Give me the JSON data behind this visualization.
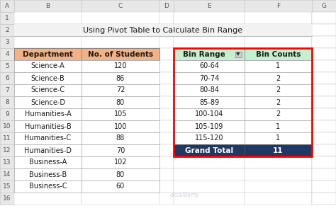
{
  "title": "Using Pivot Table to Calculate Bin Range",
  "bg_color": "#FFFFFF",
  "left_table": {
    "header": [
      "Department",
      "No. of Students"
    ],
    "header_bg": "#F4B183",
    "rows": [
      [
        "Science-A",
        "120"
      ],
      [
        "Science-B",
        "86"
      ],
      [
        "Science-C",
        "72"
      ],
      [
        "Science-D",
        "80"
      ],
      [
        "Humanities-A",
        "105"
      ],
      [
        "Humanities-B",
        "100"
      ],
      [
        "Humanities-C",
        "88"
      ],
      [
        "Humanities-D",
        "70"
      ],
      [
        "Business-A",
        "102"
      ],
      [
        "Business-B",
        "80"
      ],
      [
        "Business-C",
        "60"
      ]
    ]
  },
  "right_table": {
    "header": [
      "Bin Range",
      "Bin Counts"
    ],
    "header_bg": "#C6EFCE",
    "rows": [
      [
        "60-64",
        "1"
      ],
      [
        "70-74",
        "2"
      ],
      [
        "80-84",
        "2"
      ],
      [
        "85-89",
        "2"
      ],
      [
        "100-104",
        "2"
      ],
      [
        "105-109",
        "1"
      ],
      [
        "115-120",
        "1"
      ]
    ],
    "footer": [
      "Grand Total",
      "11"
    ],
    "footer_bg": "#1F3864",
    "footer_color": "#FFFFFF",
    "outer_border": "#FF0000"
  },
  "col_labels": [
    "A",
    "B",
    "C",
    "D",
    "E",
    "F",
    "G"
  ],
  "row_labels": [
    "1",
    "2",
    "3",
    "4",
    "5",
    "6",
    "7",
    "8",
    "9",
    "10",
    "11",
    "12",
    "13",
    "14",
    "15",
    "16"
  ],
  "grid_color": "#C8C8C8",
  "header_strip_color": "#E8E8E8",
  "cell_bg": "#FFFFFF",
  "title_bg": "#F2F2F2"
}
